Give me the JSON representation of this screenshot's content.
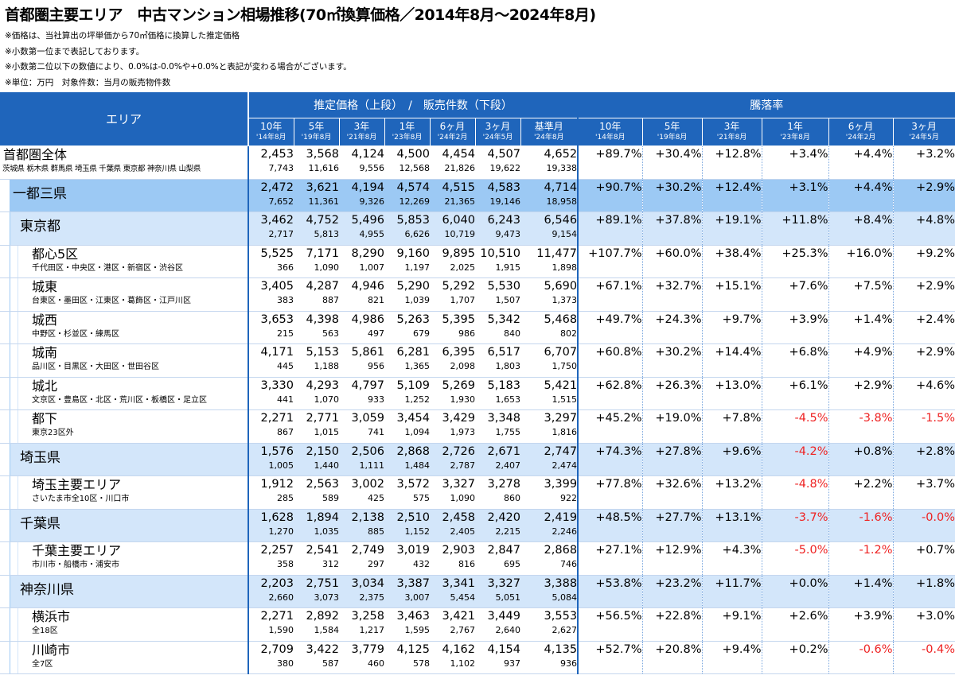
{
  "title": "首都圏主要エリア　中古マンション相場推移(70㎡換算価格／2014年8月～2024年8月)",
  "notes": [
    "※価格は、当社算出の坪単価から70㎡価格に換算した推定価格",
    "※小数第一位まで表記しております。",
    "※小数第二位以下の数値により、0.0%は-0.0%や+0.0%と表記が変わる場合がございます。",
    "※単位：万円　対象件数：当月の販売物件数"
  ],
  "header": {
    "area": "エリア",
    "price_group": "推定価格（上段）　/　販売件数（下段）",
    "rate_group": "騰落率",
    "price_cols": [
      {
        "label": "10年",
        "sub": "'14年8月"
      },
      {
        "label": "5年",
        "sub": "'19年8月"
      },
      {
        "label": "3年",
        "sub": "'21年8月"
      },
      {
        "label": "1年",
        "sub": "'23年8月"
      },
      {
        "label": "6ヶ月",
        "sub": "'24年2月"
      },
      {
        "label": "3ヶ月",
        "sub": "'24年5月"
      },
      {
        "label": "基準月",
        "sub": "'24年8月"
      }
    ],
    "rate_cols": [
      {
        "label": "10年",
        "sub": "'14年8月"
      },
      {
        "label": "5年",
        "sub": "'19年8月"
      },
      {
        "label": "3年",
        "sub": "'21年8月"
      },
      {
        "label": "1年",
        "sub": "'23年8月"
      },
      {
        "label": "6ヶ月",
        "sub": "'24年2月"
      },
      {
        "label": "3ヶ月",
        "sub": "'24年5月"
      }
    ]
  },
  "colors": {
    "header_bg": "#1f65bb",
    "level1_bg": "#9cc9f4",
    "level2_bg": "#d3e6fa",
    "negative": "#ee2222"
  },
  "rows": [
    {
      "level": 0,
      "name": "首都圏全体",
      "sub": "茨城県 栃木県 群馬県 埼玉県 千葉県 東京都 神奈川県 山梨県",
      "prices": [
        "2,453",
        "3,568",
        "4,124",
        "4,500",
        "4,454",
        "4,507",
        "4,652"
      ],
      "counts": [
        "7,743",
        "11,616",
        "9,556",
        "12,568",
        "21,826",
        "19,622",
        "19,338"
      ],
      "rates": [
        "+89.7%",
        "+30.4%",
        "+12.8%",
        "+3.4%",
        "+4.4%",
        "+3.2%"
      ]
    },
    {
      "level": 1,
      "name": "一都三県",
      "sub": "",
      "prices": [
        "2,472",
        "3,621",
        "4,194",
        "4,574",
        "4,515",
        "4,583",
        "4,714"
      ],
      "counts": [
        "7,652",
        "11,361",
        "9,326",
        "12,269",
        "21,365",
        "19,146",
        "18,958"
      ],
      "rates": [
        "+90.7%",
        "+30.2%",
        "+12.4%",
        "+3.1%",
        "+4.4%",
        "+2.9%"
      ]
    },
    {
      "level": 2,
      "name": "東京都",
      "sub": "",
      "prices": [
        "3,462",
        "4,752",
        "5,496",
        "5,853",
        "6,040",
        "6,243",
        "6,546"
      ],
      "counts": [
        "2,717",
        "5,813",
        "4,955",
        "6,626",
        "10,719",
        "9,473",
        "9,154"
      ],
      "rates": [
        "+89.1%",
        "+37.8%",
        "+19.1%",
        "+11.8%",
        "+8.4%",
        "+4.8%"
      ]
    },
    {
      "level": 3,
      "name": "都心5区",
      "sub": "千代田区・中央区・港区・新宿区・渋谷区",
      "prices": [
        "5,525",
        "7,171",
        "8,290",
        "9,160",
        "9,895",
        "10,510",
        "11,477"
      ],
      "counts": [
        "366",
        "1,090",
        "1,007",
        "1,197",
        "2,025",
        "1,915",
        "1,898"
      ],
      "rates": [
        "+107.7%",
        "+60.0%",
        "+38.4%",
        "+25.3%",
        "+16.0%",
        "+9.2%"
      ]
    },
    {
      "level": 3,
      "name": "城東",
      "sub": "台東区・墨田区・江東区・葛飾区・江戸川区",
      "prices": [
        "3,405",
        "4,287",
        "4,946",
        "5,290",
        "5,292",
        "5,530",
        "5,690"
      ],
      "counts": [
        "383",
        "887",
        "821",
        "1,039",
        "1,707",
        "1,507",
        "1,373"
      ],
      "rates": [
        "+67.1%",
        "+32.7%",
        "+15.1%",
        "+7.6%",
        "+7.5%",
        "+2.9%"
      ]
    },
    {
      "level": 3,
      "name": "城西",
      "sub": "中野区・杉並区・練馬区",
      "prices": [
        "3,653",
        "4,398",
        "4,986",
        "5,263",
        "5,395",
        "5,342",
        "5,468"
      ],
      "counts": [
        "215",
        "563",
        "497",
        "679",
        "986",
        "840",
        "802"
      ],
      "rates": [
        "+49.7%",
        "+24.3%",
        "+9.7%",
        "+3.9%",
        "+1.4%",
        "+2.4%"
      ]
    },
    {
      "level": 3,
      "name": "城南",
      "sub": "品川区・目黒区・大田区・世田谷区",
      "prices": [
        "4,171",
        "5,153",
        "5,861",
        "6,281",
        "6,395",
        "6,517",
        "6,707"
      ],
      "counts": [
        "445",
        "1,188",
        "956",
        "1,365",
        "2,098",
        "1,803",
        "1,750"
      ],
      "rates": [
        "+60.8%",
        "+30.2%",
        "+14.4%",
        "+6.8%",
        "+4.9%",
        "+2.9%"
      ]
    },
    {
      "level": 3,
      "name": "城北",
      "sub": "文京区・豊島区・北区・荒川区・板橋区・足立区",
      "prices": [
        "3,330",
        "4,293",
        "4,797",
        "5,109",
        "5,269",
        "5,183",
        "5,421"
      ],
      "counts": [
        "441",
        "1,070",
        "933",
        "1,252",
        "1,930",
        "1,653",
        "1,515"
      ],
      "rates": [
        "+62.8%",
        "+26.3%",
        "+13.0%",
        "+6.1%",
        "+2.9%",
        "+4.6%"
      ]
    },
    {
      "level": 3,
      "name": "都下",
      "sub": "東京23区外",
      "prices": [
        "2,271",
        "2,771",
        "3,059",
        "3,454",
        "3,429",
        "3,348",
        "3,297"
      ],
      "counts": [
        "867",
        "1,015",
        "741",
        "1,094",
        "1,973",
        "1,755",
        "1,816"
      ],
      "rates": [
        "+45.2%",
        "+19.0%",
        "+7.8%",
        "-4.5%",
        "-3.8%",
        "-1.5%"
      ]
    },
    {
      "level": 2,
      "name": "埼玉県",
      "sub": "",
      "prices": [
        "1,576",
        "2,150",
        "2,506",
        "2,868",
        "2,726",
        "2,671",
        "2,747"
      ],
      "counts": [
        "1,005",
        "1,440",
        "1,111",
        "1,484",
        "2,787",
        "2,407",
        "2,474"
      ],
      "rates": [
        "+74.3%",
        "+27.8%",
        "+9.6%",
        "-4.2%",
        "+0.8%",
        "+2.8%"
      ]
    },
    {
      "level": 3,
      "name": "埼玉主要エリア",
      "sub": "さいたま市全10区・川口市",
      "prices": [
        "1,912",
        "2,563",
        "3,002",
        "3,572",
        "3,327",
        "3,278",
        "3,399"
      ],
      "counts": [
        "285",
        "589",
        "425",
        "575",
        "1,090",
        "860",
        "922"
      ],
      "rates": [
        "+77.8%",
        "+32.6%",
        "+13.2%",
        "-4.8%",
        "+2.2%",
        "+3.7%"
      ]
    },
    {
      "level": 2,
      "name": "千葉県",
      "sub": "",
      "prices": [
        "1,628",
        "1,894",
        "2,138",
        "2,510",
        "2,458",
        "2,420",
        "2,419"
      ],
      "counts": [
        "1,270",
        "1,035",
        "885",
        "1,152",
        "2,405",
        "2,215",
        "2,246"
      ],
      "rates": [
        "+48.5%",
        "+27.7%",
        "+13.1%",
        "-3.7%",
        "-1.6%",
        "-0.0%"
      ]
    },
    {
      "level": 3,
      "name": "千葉主要エリア",
      "sub": "市川市・船橋市・浦安市",
      "prices": [
        "2,257",
        "2,541",
        "2,749",
        "3,019",
        "2,903",
        "2,847",
        "2,868"
      ],
      "counts": [
        "358",
        "312",
        "297",
        "432",
        "816",
        "695",
        "746"
      ],
      "rates": [
        "+27.1%",
        "+12.9%",
        "+4.3%",
        "-5.0%",
        "-1.2%",
        "+0.7%"
      ]
    },
    {
      "level": 2,
      "name": "神奈川県",
      "sub": "",
      "prices": [
        "2,203",
        "2,751",
        "3,034",
        "3,387",
        "3,341",
        "3,327",
        "3,388"
      ],
      "counts": [
        "2,660",
        "3,073",
        "2,375",
        "3,007",
        "5,454",
        "5,051",
        "5,084"
      ],
      "rates": [
        "+53.8%",
        "+23.2%",
        "+11.7%",
        "+0.0%",
        "+1.4%",
        "+1.8%"
      ]
    },
    {
      "level": 3,
      "name": "横浜市",
      "sub": "全18区",
      "prices": [
        "2,271",
        "2,892",
        "3,258",
        "3,463",
        "3,421",
        "3,449",
        "3,553"
      ],
      "counts": [
        "1,590",
        "1,584",
        "1,217",
        "1,595",
        "2,767",
        "2,640",
        "2,627"
      ],
      "rates": [
        "+56.5%",
        "+22.8%",
        "+9.1%",
        "+2.6%",
        "+3.9%",
        "+3.0%"
      ]
    },
    {
      "level": 3,
      "name": "川崎市",
      "sub": "全7区",
      "prices": [
        "2,709",
        "3,422",
        "3,779",
        "4,125",
        "4,162",
        "4,154",
        "4,135"
      ],
      "counts": [
        "380",
        "587",
        "460",
        "578",
        "1,102",
        "937",
        "936"
      ],
      "rates": [
        "+52.7%",
        "+20.8%",
        "+9.4%",
        "+0.2%",
        "-0.6%",
        "-0.4%"
      ]
    }
  ]
}
